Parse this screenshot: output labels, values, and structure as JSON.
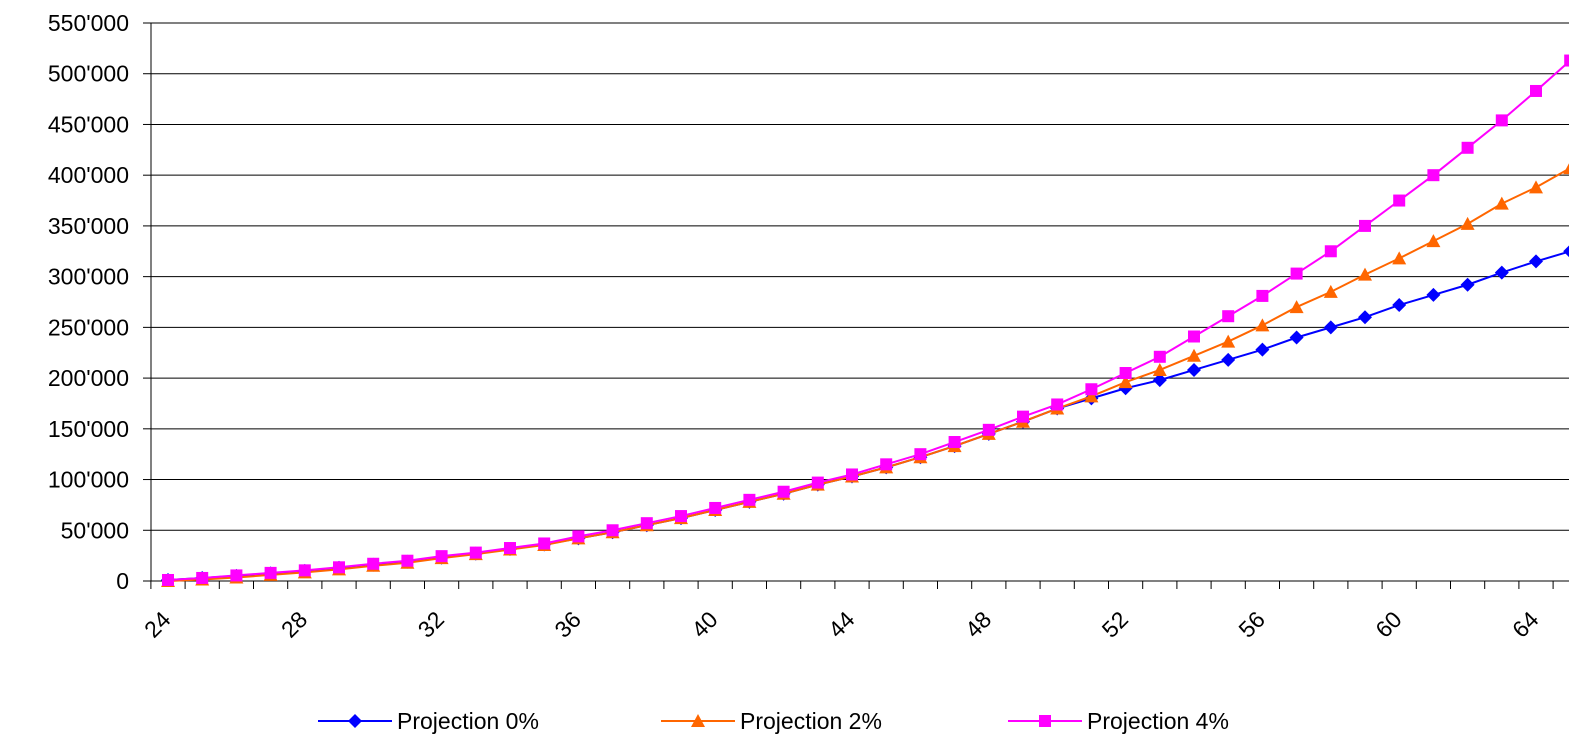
{
  "chart_data": {
    "type": "line",
    "title": "",
    "xlabel": "",
    "ylabel": "",
    "x": [
      24,
      25,
      26,
      27,
      28,
      29,
      30,
      31,
      32,
      33,
      34,
      35,
      36,
      37,
      38,
      39,
      40,
      41,
      42,
      43,
      44,
      45,
      46,
      47,
      48,
      49,
      50,
      51,
      52,
      53,
      54,
      55,
      56,
      57,
      58,
      59,
      60,
      61,
      62,
      63,
      64,
      65
    ],
    "xlim": [
      24,
      65
    ],
    "ylim": [
      0,
      550000
    ],
    "y_ticks": [
      0,
      50000,
      100000,
      150000,
      200000,
      250000,
      300000,
      350000,
      400000,
      450000,
      500000,
      550000
    ],
    "y_tick_labels": [
      "0",
      "50'000",
      "100'000",
      "150'000",
      "200'000",
      "250'000",
      "300'000",
      "350'000",
      "400'000",
      "450'000",
      "500'000",
      "550'000"
    ],
    "x_tick_values": [
      24,
      28,
      32,
      36,
      40,
      44,
      48,
      52,
      56,
      60,
      64
    ],
    "x_tick_labels": [
      "24",
      "28",
      "32",
      "36",
      "40",
      "44",
      "48",
      "52",
      "56",
      "60",
      "64"
    ],
    "grid": "horizontal",
    "legend_position": "bottom",
    "series": [
      {
        "name": "Projection 0%",
        "color": "#0000ff",
        "marker": "diamond",
        "values": [
          1000,
          3000,
          5000,
          7500,
          10000,
          13000,
          16000,
          19000,
          23000,
          27000,
          31500,
          36000,
          42000,
          48000,
          55000,
          62000,
          70000,
          78000,
          86000,
          95000,
          103000,
          112000,
          122000,
          133000,
          145000,
          157000,
          170000,
          180000,
          190000,
          198000,
          208000,
          218000,
          228000,
          240000,
          250000,
          260000,
          272000,
          282000,
          292000,
          304000,
          315000,
          325000
        ]
      },
      {
        "name": "Projection 2%",
        "color": "#ff6600",
        "marker": "triangle",
        "values": [
          0,
          1500,
          3500,
          6000,
          8500,
          11500,
          15000,
          18000,
          22500,
          26500,
          31000,
          35500,
          42000,
          48000,
          55000,
          62000,
          70000,
          78000,
          86000,
          95000,
          103000,
          112000,
          122000,
          133000,
          145000,
          157000,
          170000,
          182000,
          196000,
          208000,
          222000,
          236000,
          252000,
          270000,
          285000,
          302000,
          318000,
          335000,
          352000,
          372000,
          388000,
          407000
        ]
      },
      {
        "name": "Projection 4%",
        "color": "#ff00ff",
        "marker": "square",
        "values": [
          1000,
          3000,
          5500,
          8000,
          10500,
          13500,
          17000,
          20000,
          24500,
          28000,
          32500,
          37000,
          44000,
          50000,
          57000,
          64000,
          72000,
          80000,
          88000,
          97000,
          105000,
          115000,
          125000,
          137000,
          149000,
          162000,
          174000,
          189000,
          205000,
          221000,
          241000,
          261000,
          281000,
          303000,
          325000,
          350000,
          375000,
          400000,
          427000,
          454000,
          483000,
          513000
        ]
      }
    ]
  }
}
